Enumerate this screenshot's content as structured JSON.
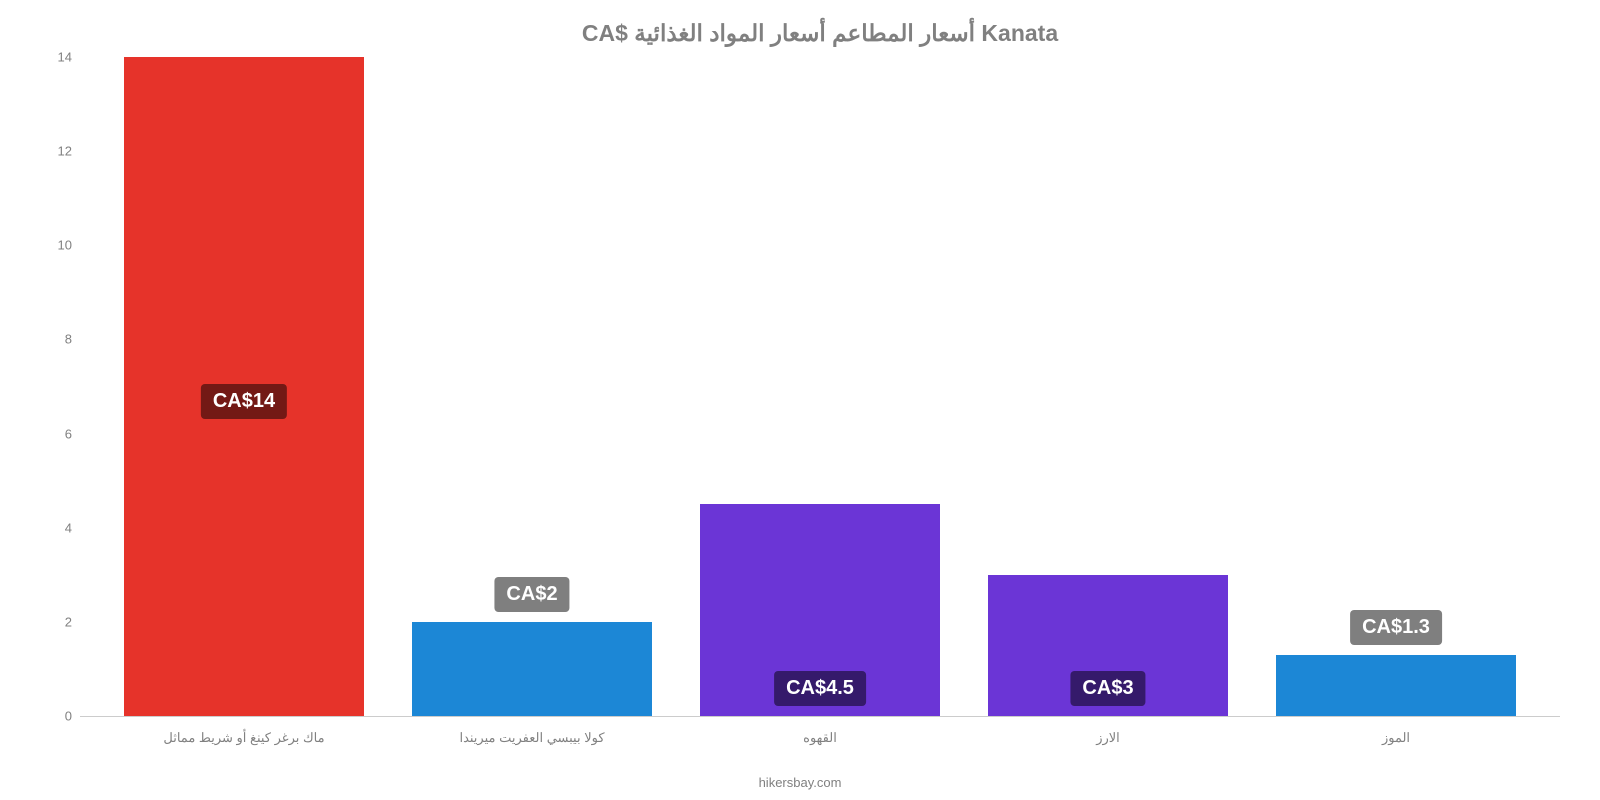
{
  "chart": {
    "type": "bar",
    "title": "CA$ أسعار المطاعم أسعار المواد الغذائية Kanata",
    "title_fontsize": 23,
    "title_color": "#808080",
    "background_color": "#ffffff",
    "source": "hikersbay.com",
    "ylim": [
      0,
      14
    ],
    "ytick_step": 2,
    "yticks": [
      0,
      2,
      4,
      6,
      8,
      10,
      12,
      14
    ],
    "axis_color": "#cccccc",
    "tick_label_color": "#808080",
    "tick_fontsize": 13,
    "bar_label_fontsize": 20,
    "bar_label_bg": "rgba(0,0,0,0.5)",
    "bar_label_color": "#ffffff",
    "categories": [
      "ماك برغر كينغ أو شريط مماثل",
      "كولا بيبسي العفريت ميريندا",
      "القهوه",
      "الارز",
      "الموز"
    ],
    "values": [
      14,
      2,
      4.5,
      3,
      1.3
    ],
    "value_labels": [
      "CA$14",
      "CA$2",
      "CA$4.5",
      "CA$3",
      "CA$1.3"
    ],
    "bar_colors": [
      "#e6332a",
      "#1c87d6",
      "#6b35d6",
      "#6b35d6",
      "#1c87d6"
    ],
    "label_positions": [
      "inside",
      "above",
      "inside-low",
      "inside-low",
      "above"
    ]
  }
}
